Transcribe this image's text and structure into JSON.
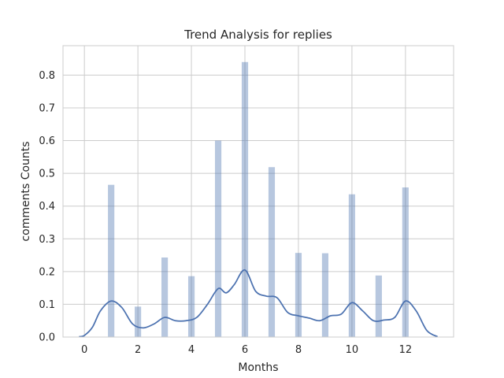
{
  "chart_data": {
    "type": "bar",
    "title": "Trend Analysis for replies",
    "xlabel": "Months",
    "ylabel": "comments Counts",
    "xlim": [
      -0.8,
      13.8
    ],
    "ylim": [
      0,
      0.89
    ],
    "xticks": [
      0,
      2,
      4,
      6,
      8,
      10,
      12
    ],
    "yticks": [
      0.0,
      0.1,
      0.2,
      0.3,
      0.4,
      0.5,
      0.6,
      0.7,
      0.8
    ],
    "grid": true,
    "bar_color": "#4c72b0",
    "line_color": "#4c72b0",
    "histogram": {
      "name": "histogram",
      "x": [
        1,
        2,
        3,
        4,
        5,
        6,
        7,
        8,
        9,
        10,
        11,
        12
      ],
      "values": [
        0.465,
        0.093,
        0.243,
        0.186,
        0.6,
        0.84,
        0.519,
        0.257,
        0.256,
        0.436,
        0.188,
        0.457
      ]
    },
    "kde": {
      "name": "density",
      "x": [
        -0.2,
        0,
        0.3,
        0.6,
        1.0,
        1.4,
        1.8,
        2.2,
        2.6,
        3.0,
        3.4,
        3.8,
        4.2,
        4.6,
        5.0,
        5.3,
        5.6,
        6.0,
        6.4,
        6.8,
        7.2,
        7.6,
        8.0,
        8.4,
        8.8,
        9.2,
        9.6,
        10.0,
        10.4,
        10.8,
        11.2,
        11.6,
        12.0,
        12.4,
        12.8,
        13.2
      ],
      "y": [
        0.001,
        0.005,
        0.03,
        0.08,
        0.11,
        0.09,
        0.04,
        0.028,
        0.04,
        0.06,
        0.05,
        0.05,
        0.06,
        0.1,
        0.148,
        0.135,
        0.16,
        0.205,
        0.14,
        0.125,
        0.12,
        0.075,
        0.065,
        0.058,
        0.05,
        0.065,
        0.07,
        0.105,
        0.08,
        0.05,
        0.052,
        0.06,
        0.11,
        0.08,
        0.02,
        0.001
      ]
    }
  }
}
